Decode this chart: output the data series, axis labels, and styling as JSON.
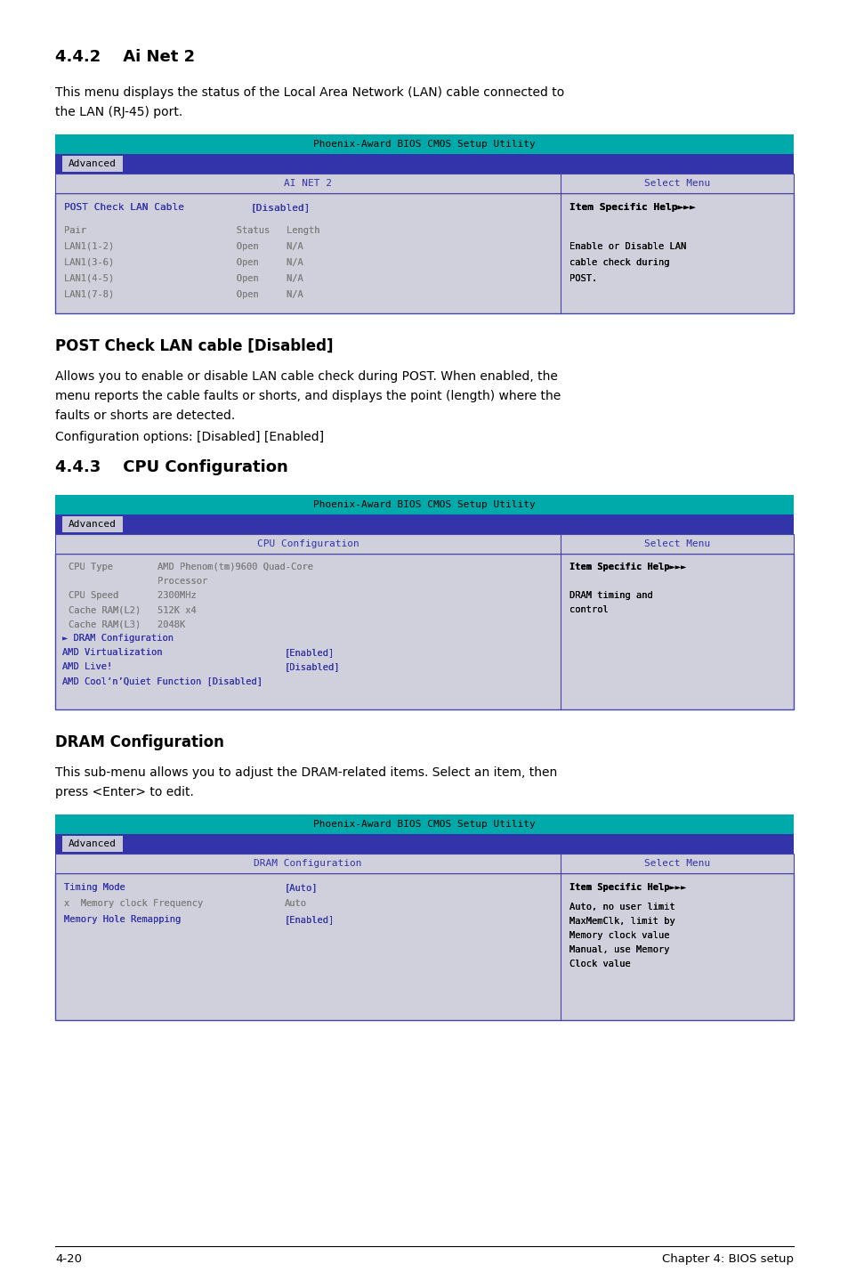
{
  "bg_color": "#ffffff",
  "title_bar_color": "#00aaaa",
  "menu_bar_color": "#3333aa",
  "menu_tab_bg": "#c8c8d8",
  "header_bg": "#d0d0dc",
  "body_bg": "#d0d0dc",
  "border_color": "#4444aa",
  "text_blue": "#3333aa",
  "text_gray": "#808080",
  "text_black": "#000000",
  "section1_heading": "4.4.2    Ai Net 2",
  "section1_body1": "This menu displays the status of the Local Area Network (LAN) cable connected to",
  "section1_body2": "the LAN (RJ-45) port.",
  "bios1_title": "Phoenix-Award BIOS CMOS Setup Utility",
  "bios1_tab": "Advanced",
  "bios1_lhdr": "AI NET 2",
  "bios1_rhdr": "Select Menu",
  "bios1_row0_l": "POST Check LAN Cable",
  "bios1_row0_m": "[Disabled]",
  "bios1_row0_r": "Item Specific Help►►►",
  "bios1_pair_header": "Pair                           Status   Length",
  "bios1_lan12": "LAN1(1-2)                      Open     N/A",
  "bios1_lan36": "LAN1(3-6)                      Open     N/A",
  "bios1_lan45": "LAN1(4-5)                      Open     N/A",
  "bios1_lan78": "LAN1(7-8)                      Open     N/A",
  "bios1_help2": "Enable or Disable LAN",
  "bios1_help3": "cable check during",
  "bios1_help4": "POST.",
  "section2_heading": "POST Check LAN cable [Disabled]",
  "section2_body1": "Allows you to enable or disable LAN cable check during POST. When enabled, the",
  "section2_body2": "menu reports the cable faults or shorts, and displays the point (length) where the",
  "section2_body3": "faults or shorts are detected.",
  "section2_body4": "Configuration options: [Disabled] [Enabled]",
  "section3_heading": "4.4.3    CPU Configuration",
  "bios2_title": "Phoenix-Award BIOS CMOS Setup Utility",
  "bios2_tab": "Advanced",
  "bios2_lhdr": "CPU Configuration",
  "bios2_rhdr": "Select Menu",
  "bios2_cpu_type1": "CPU Type        AMD Phenom(tm)9600 Quad-Core",
  "bios2_cpu_type2": "                Processor",
  "bios2_cpu_speed": "CPU Speed       2300MHz",
  "bios2_cache_l2": "Cache RAM(L2)   512K x4",
  "bios2_cache_l3": "Cache RAM(L3)   2048K",
  "bios2_dram": "► DRAM Configuration",
  "bios2_virt": "AMD Virtualization",
  "bios2_virt_val": "[Enabled]",
  "bios2_live": "AMD Live!",
  "bios2_live_val": "[Disabled]",
  "bios2_quiet": "AMD Cool’n’Quiet Function [Disabled]",
  "bios2_help1": "Item Specific Help►►►",
  "bios2_help2": "DRAM timing and",
  "bios2_help3": "control",
  "section4_heading": "DRAM Configuration",
  "section4_body1": "This sub-menu allows you to adjust the DRAM-related items. Select an item, then",
  "section4_body2": "press <Enter> to edit.",
  "bios3_title": "Phoenix-Award BIOS CMOS Setup Utility",
  "bios3_tab": "Advanced",
  "bios3_lhdr": "DRAM Configuration",
  "bios3_rhdr": "Select Menu",
  "bios3_timing": "Timing Mode",
  "bios3_timing_val": "[Auto]",
  "bios3_memclk": "x  Memory clock Frequency",
  "bios3_memclk_val": "Auto",
  "bios3_memhole": "Memory Hole Remapping",
  "bios3_memhole_val": "[Enabled]",
  "bios3_help1": "Item Specific Help►►►",
  "bios3_help2": "Auto, no user limit",
  "bios3_help3": "MaxMemClk, limit by",
  "bios3_help4": "Memory clock value",
  "bios3_help5": "Manual, use Memory",
  "bios3_help6": "Clock value",
  "footer_left": "4-20",
  "footer_right": "Chapter 4: BIOS setup"
}
